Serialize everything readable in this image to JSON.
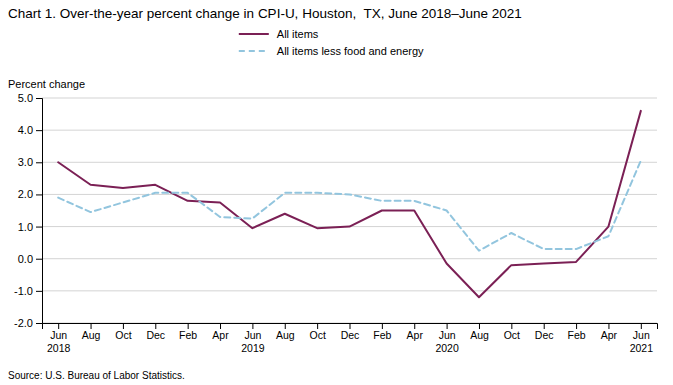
{
  "chart_data": {
    "type": "line",
    "title": "Chart 1. Over-the-year percent change in CPI-U, Houston,  TX, June 2018–June 2021",
    "y_label": "Percent change",
    "annotations": [
      "Source: U.S. Bureau of Labor Statistics."
    ],
    "categories": [
      "Jun\n2018",
      "Aug",
      "Oct",
      "Dec",
      "Feb",
      "Apr",
      "Jun\n2019",
      "Aug",
      "Oct",
      "Dec",
      "Feb",
      "Apr",
      "Jun\n2020",
      "Aug",
      "Oct",
      "Dec",
      "Feb",
      "Apr",
      "Jun\n2021"
    ],
    "series": [
      {
        "name": "All items",
        "color": "#7b2055",
        "line_style": "solid",
        "values": [
          3.0,
          2.3,
          2.2,
          2.3,
          1.8,
          1.75,
          0.95,
          1.4,
          0.95,
          1.0,
          1.5,
          1.5,
          -0.15,
          -1.2,
          -0.2,
          -0.15,
          -0.1,
          1.0,
          4.6
        ]
      },
      {
        "name": "All items less food and energy",
        "color": "#92c5de",
        "line_style": "dashed",
        "values": [
          1.9,
          1.45,
          1.75,
          2.05,
          2.05,
          1.3,
          1.25,
          2.05,
          2.05,
          2.0,
          1.8,
          1.8,
          1.5,
          0.25,
          0.8,
          0.3,
          0.3,
          0.7,
          3.05
        ]
      }
    ],
    "ylim": [
      -2.0,
      5.0
    ],
    "yticks": [
      {
        "value": -2.0,
        "label": "-2.0"
      },
      {
        "value": -1.0,
        "label": "-1.0"
      },
      {
        "value": 0.0,
        "label": "0.0"
      },
      {
        "value": 1.0,
        "label": "1.0"
      },
      {
        "value": 2.0,
        "label": "2.0"
      },
      {
        "value": 3.0,
        "label": "3.0"
      },
      {
        "value": 4.0,
        "label": "4.0"
      },
      {
        "value": 5.0,
        "label": "5.0"
      }
    ],
    "grid": true,
    "legend": "top"
  }
}
